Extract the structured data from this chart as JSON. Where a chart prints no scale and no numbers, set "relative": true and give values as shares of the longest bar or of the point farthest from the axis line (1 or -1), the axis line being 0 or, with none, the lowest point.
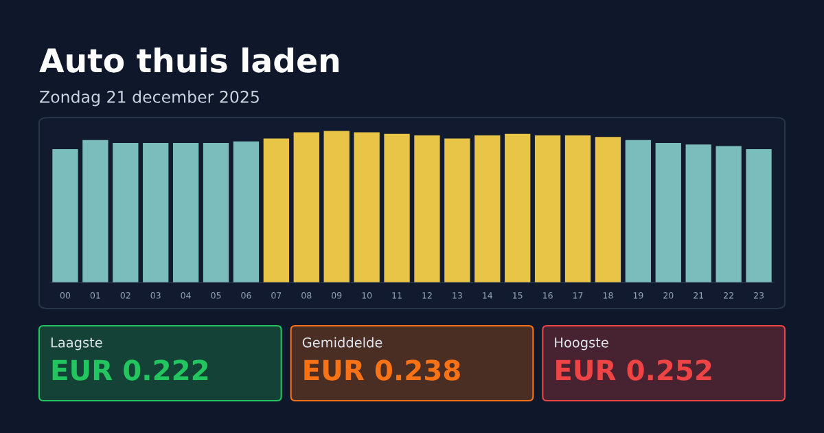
{
  "chart_data": [
    {
      "type": "bar",
      "title": "Auto thuis laden",
      "subtitle": "Zondag 21 december 2025",
      "relative": true,
      "categories": [
        "00",
        "01",
        "02",
        "03",
        "04",
        "05",
        "06",
        "07",
        "08",
        "09",
        "10",
        "11",
        "12",
        "13",
        "14",
        "15",
        "16",
        "17",
        "18",
        "19",
        "20",
        "21",
        "22",
        "23"
      ],
      "values": [
        0.88,
        0.94,
        0.92,
        0.92,
        0.92,
        0.92,
        0.93,
        0.95,
        0.99,
        1.0,
        0.99,
        0.98,
        0.97,
        0.95,
        0.97,
        0.98,
        0.97,
        0.97,
        0.96,
        0.94,
        0.92,
        0.91,
        0.9,
        0.88
      ],
      "colors": [
        "#7bbcbc",
        "#7bbcbc",
        "#7bbcbc",
        "#7bbcbc",
        "#7bbcbc",
        "#7bbcbc",
        "#7bbcbc",
        "#e8c547",
        "#e8c547",
        "#e8c547",
        "#e8c547",
        "#e8c547",
        "#e8c547",
        "#e8c547",
        "#e8c547",
        "#e8c547",
        "#e8c547",
        "#e8c547",
        "#e8c547",
        "#7bbcbc",
        "#7bbcbc",
        "#7bbcbc",
        "#7bbcbc",
        "#7bbcbc"
      ]
    },
    {
      "type": "other",
      "annotations": [
        "Laagste",
        "EUR 0.222",
        "Gemiddelde",
        "EUR 0.238",
        "Hoogste",
        "EUR 0.252"
      ],
      "colors": [
        "#22c55e",
        "#f97316",
        "#ef4444"
      ]
    }
  ]
}
